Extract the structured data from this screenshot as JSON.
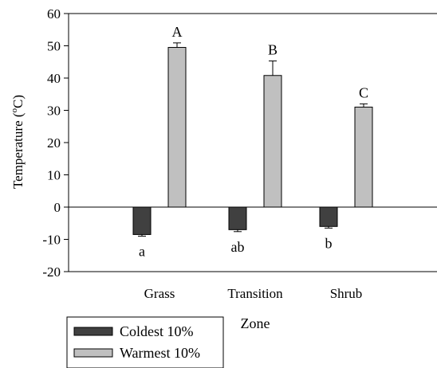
{
  "chart_data": {
    "type": "bar",
    "categories": [
      "Grass",
      "Transition",
      "Shrub"
    ],
    "series": [
      {
        "name": "Coldest 10%",
        "color": "#404040",
        "values": [
          -8.5,
          -7,
          -6
        ],
        "errors": [
          0.5,
          0.6,
          0.5
        ],
        "labels": [
          "a",
          "ab",
          "b"
        ]
      },
      {
        "name": "Warmest 10%",
        "color": "#c0c0c0",
        "values": [
          49.5,
          40.8,
          31
        ],
        "errors": [
          1.4,
          4.5,
          1.0
        ],
        "labels": [
          "A",
          "B",
          "C"
        ]
      }
    ],
    "xlabel": "Zone",
    "ylabel": {
      "main": "Temperature (",
      "superscript": "o",
      "unit": "C)"
    },
    "ylim": [
      -20,
      60
    ],
    "yticks": [
      -20,
      -10,
      0,
      10,
      20,
      30,
      40,
      50,
      60
    ],
    "grid": false,
    "legend_position": "bottom-left"
  }
}
